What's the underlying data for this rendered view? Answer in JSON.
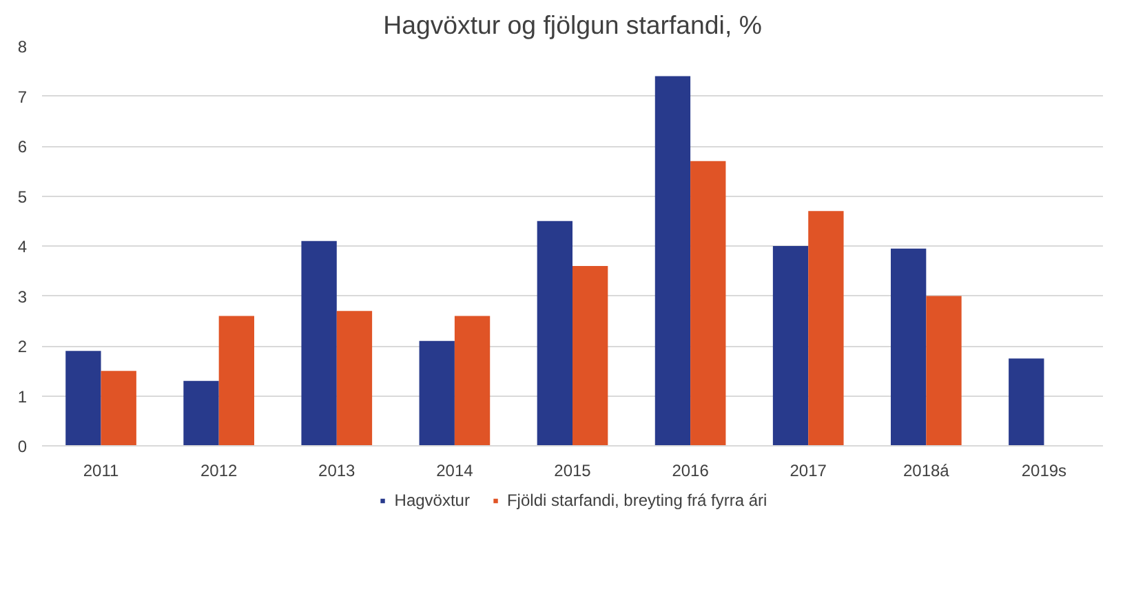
{
  "chart_data": {
    "type": "bar",
    "title": "Hagvöxtur og fjölgun starfandi, %",
    "categories": [
      "2011",
      "2012",
      "2013",
      "2014",
      "2015",
      "2016",
      "2017",
      "2018á",
      "2019s"
    ],
    "series": [
      {
        "name": "Hagvöxtur",
        "color": "#283a8c",
        "values": [
          1.9,
          1.3,
          4.1,
          2.1,
          4.5,
          7.4,
          4.0,
          3.95,
          1.75
        ]
      },
      {
        "name": "Fjöldi starfandi, breyting frá fyrra ári",
        "color": "#e05426",
        "values": [
          1.5,
          2.6,
          2.7,
          2.6,
          3.6,
          5.7,
          4.7,
          3.0,
          null
        ]
      }
    ],
    "ylim": [
      0,
      8
    ],
    "yticks": [
      0,
      1,
      2,
      3,
      4,
      5,
      6,
      7,
      8
    ],
    "grid": "y",
    "legend": "bottom"
  }
}
